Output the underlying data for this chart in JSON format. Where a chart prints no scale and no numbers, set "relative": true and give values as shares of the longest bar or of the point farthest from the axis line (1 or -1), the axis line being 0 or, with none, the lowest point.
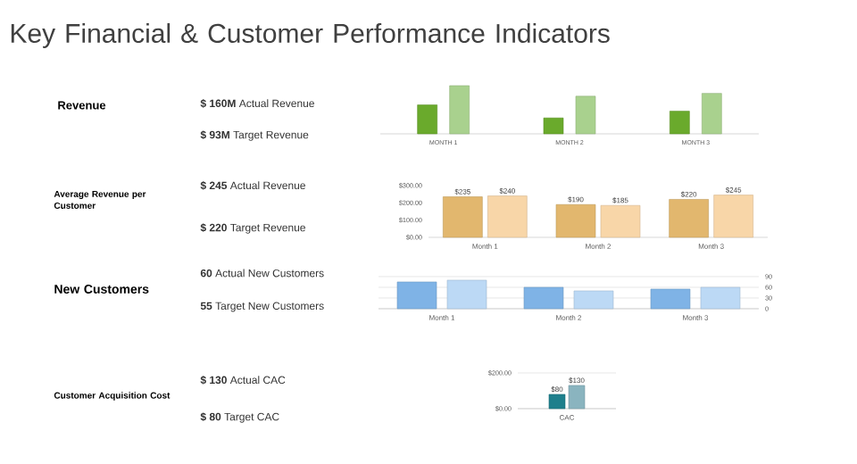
{
  "chart_data": [
    {
      "type": "other",
      "title": "Key Financial & Customer Performance Indicators"
    },
    {
      "type": "other",
      "title": "Revenue",
      "annotations": [
        "**$ 160M** Actual Revenue",
        "**$ 93M** Target Revenue"
      ]
    },
    {
      "type": "bar",
      "relative": true,
      "categories": [
        "MONTH 1",
        "MONTH 2",
        "MONTH 3"
      ],
      "series": [
        {
          "color": "#6aaa2c",
          "values": [
            0.6,
            0.33,
            0.47
          ]
        },
        {
          "color": "#a9d18e",
          "values": [
            1,
            0.78,
            0.84
          ]
        }
      ]
    },
    {
      "type": "other",
      "title": "Average Revenue per Customer",
      "annotations": [
        "**$ 245** Actual Revenue",
        "**$ 220** Target Revenue"
      ]
    },
    {
      "type": "bar",
      "categories": [
        "Month 1",
        "Month 2",
        "Month 3"
      ],
      "ylim": [
        0,
        300
      ],
      "yticks": [
        {
          "value": 0,
          "label": "$0.00"
        },
        {
          "value": 100,
          "label": "$100.00"
        },
        {
          "value": 200,
          "label": "$200.00"
        },
        {
          "value": 300,
          "label": "$300.00"
        }
      ],
      "series": [
        {
          "color": "#e2b76e",
          "values": [
            235,
            190,
            220
          ],
          "value_labels": [
            "$235",
            "$190",
            "$220"
          ]
        },
        {
          "color": "#f8d6a8",
          "values": [
            240,
            185,
            245
          ],
          "value_labels": [
            "$240",
            "$185",
            "$245"
          ]
        }
      ]
    },
    {
      "type": "other",
      "title": "New Customers",
      "annotations": [
        "**60** Actual New Customers",
        "**55** Target New Customers"
      ]
    },
    {
      "type": "bar",
      "categories": [
        "Month 1",
        "Month 2",
        "Month 3"
      ],
      "ylim": [
        0,
        90
      ],
      "yticks": [
        0,
        30,
        60,
        90
      ],
      "grid": "y",
      "series": [
        {
          "color": "#7fb3e6",
          "values": [
            75,
            60,
            55
          ]
        },
        {
          "color": "#bcd9f5",
          "values": [
            80,
            50,
            60
          ]
        }
      ]
    },
    {
      "type": "other",
      "title": "Customer Acquisition Cost",
      "annotations": [
        "**$ 130** Actual CAC",
        "**$ 80** Target CAC"
      ]
    },
    {
      "type": "bar",
      "categories": [
        "CAC"
      ],
      "ylim": [
        0,
        200
      ],
      "yticks": [
        {
          "value": 0,
          "label": "$0.00"
        },
        {
          "value": 200,
          "label": "$200.00"
        }
      ],
      "grid": "y",
      "series": [
        {
          "color": "#1e7f8c",
          "values": [
            80
          ],
          "value_labels": [
            "$80"
          ]
        },
        {
          "color": "#8ab4bf",
          "values": [
            130
          ],
          "value_labels": [
            "$130"
          ]
        }
      ]
    }
  ]
}
